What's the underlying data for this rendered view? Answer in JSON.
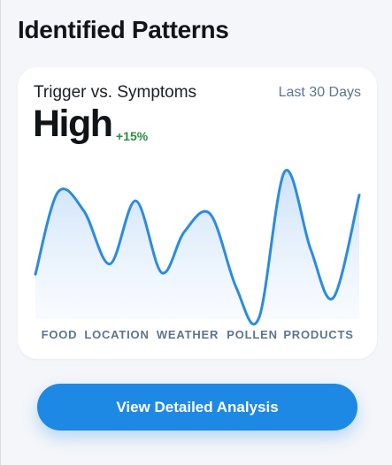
{
  "header": {
    "title": "Identified Patterns"
  },
  "card": {
    "label": "Trigger vs. Symptoms",
    "range": "Last 30 Days",
    "value": "High",
    "delta": "+15%"
  },
  "chart_data": {
    "type": "area",
    "title": "",
    "xlabel": "",
    "ylabel": "",
    "grid": false,
    "categories": [
      "FOOD",
      "LOCATION",
      "WEATHER",
      "POLLEN",
      "PRODUCTS"
    ],
    "x": [
      0,
      0.07,
      0.15,
      0.23,
      0.31,
      0.39,
      0.46,
      0.54,
      0.62,
      0.69,
      0.77,
      0.85,
      0.92,
      1.0
    ],
    "ylim": [
      0,
      100
    ],
    "values": [
      30,
      86,
      73,
      37,
      80,
      31,
      59,
      71,
      21,
      0,
      100,
      47,
      14,
      84
    ],
    "colors": {
      "line": "#2b8be0",
      "fill": "#dcebfb"
    }
  },
  "cta": {
    "label": "View Detailed Analysis"
  }
}
